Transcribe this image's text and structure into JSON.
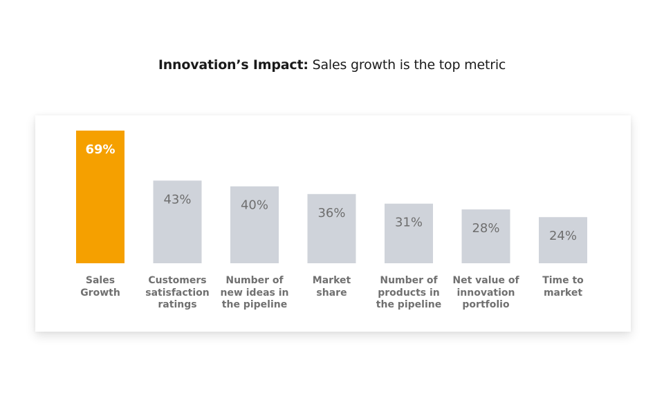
{
  "title": {
    "bold": "Innovation’s Impact:",
    "rest": " Sales growth is the top metric"
  },
  "colors": {
    "highlight": "#F5A000",
    "default": "#CFD3DA",
    "label_on_highlight": "#FFFFFF",
    "label_default": "#6E6E6E"
  },
  "chart_data": {
    "type": "bar",
    "title": "Innovation’s Impact: Sales growth is the top metric",
    "xlabel": "",
    "ylabel": "",
    "ylim": [
      0,
      69
    ],
    "grid": false,
    "categories": [
      "Sales\nGrowth",
      "Customers\nsatisfaction\nratings",
      "Number of\nnew ideas in\nthe pipeline",
      "Market\nshare",
      "Number of\nproducts in\nthe pipeline",
      "Net value of\ninnovation\nportfolio",
      "Time to\nmarket"
    ],
    "values": [
      69,
      43,
      40,
      36,
      31,
      28,
      24
    ],
    "value_labels": [
      "69%",
      "43%",
      "40%",
      "36%",
      "31%",
      "28%",
      "24%"
    ],
    "highlight_index": 0
  }
}
